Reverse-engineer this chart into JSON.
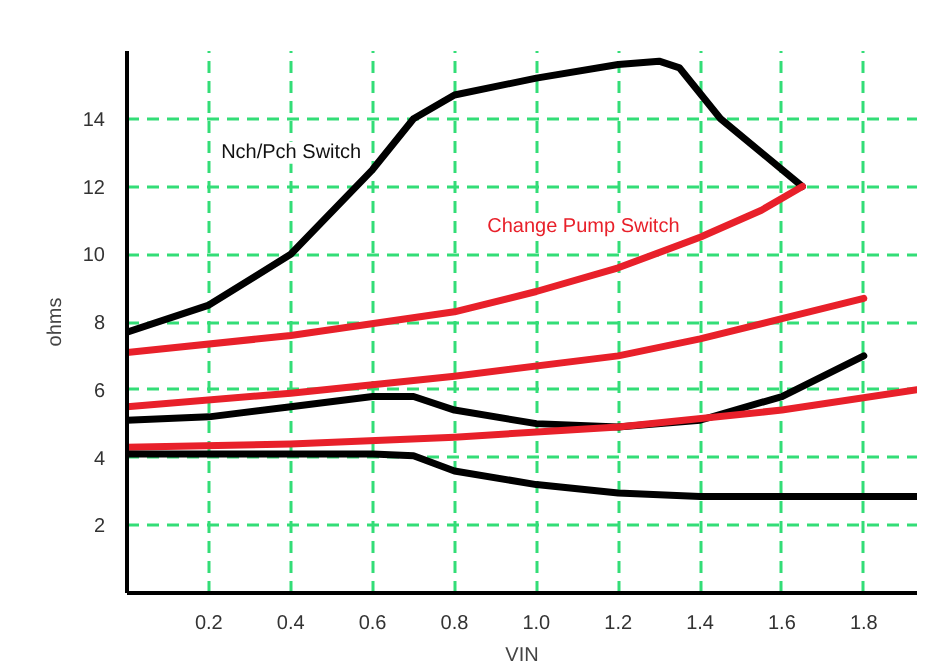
{
  "chart_data": {
    "type": "line",
    "xlabel": "VIN",
    "ylabel": "ohms",
    "xlim": [
      0,
      1.93
    ],
    "ylim": [
      0,
      16
    ],
    "xticks": [
      0.2,
      0.4,
      0.6,
      0.8,
      {
        "value": 1.0,
        "label": "1.0"
      },
      1.2,
      1.4,
      1.6,
      1.8
    ],
    "yticks": [
      2,
      4,
      6,
      8,
      10,
      12,
      14
    ],
    "grid": true,
    "marker": "none",
    "line_style": "solid",
    "annotations": [
      "Nch/Pch Switch",
      "Change Pump Switch"
    ],
    "series": [
      {
        "color": "#000000",
        "x": [
          0,
          0.2,
          0.4,
          0.6,
          0.7,
          0.8,
          1.0,
          1.2,
          1.3,
          1.35,
          1.45,
          1.55,
          1.65
        ],
        "values": [
          7.7,
          8.5,
          10.0,
          12.5,
          14.0,
          14.7,
          15.2,
          15.6,
          15.7,
          15.5,
          14.0,
          13.0,
          12.0
        ]
      },
      {
        "color": "#e8202a",
        "x": [
          0,
          0.4,
          0.8,
          1.0,
          1.2,
          1.4,
          1.55,
          1.65
        ],
        "values": [
          7.1,
          7.6,
          8.3,
          8.9,
          9.6,
          10.5,
          11.3,
          12.0
        ]
      },
      {
        "color": "#e8202a",
        "x": [
          0,
          0.4,
          0.8,
          1.2,
          1.4,
          1.6,
          1.8
        ],
        "values": [
          5.5,
          5.9,
          6.4,
          7.0,
          7.5,
          8.1,
          8.7
        ]
      },
      {
        "color": "#000000",
        "x": [
          0,
          0.2,
          0.4,
          0.6,
          0.7,
          0.8,
          1.0,
          1.2,
          1.4,
          1.6,
          1.8
        ],
        "values": [
          5.1,
          5.2,
          5.5,
          5.8,
          5.8,
          5.4,
          5.0,
          4.9,
          5.1,
          5.8,
          7.0
        ]
      },
      {
        "color": "#e8202a",
        "x": [
          0,
          0.4,
          0.8,
          1.2,
          1.6,
          1.93
        ],
        "values": [
          4.3,
          4.4,
          4.6,
          4.9,
          5.4,
          6.0
        ]
      },
      {
        "color": "#000000",
        "x": [
          0,
          0.6,
          0.7,
          0.8,
          1.0,
          1.2,
          1.4,
          1.6,
          1.93
        ],
        "values": [
          4.1,
          4.1,
          4.05,
          3.6,
          3.2,
          2.95,
          2.85,
          2.85,
          2.85
        ]
      }
    ]
  }
}
